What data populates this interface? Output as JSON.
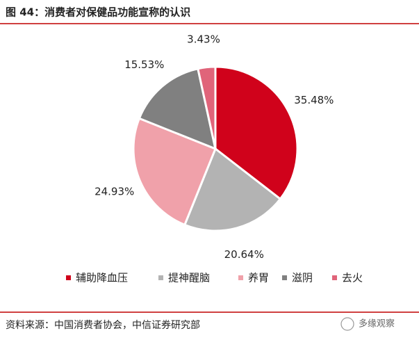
{
  "chart_data": {
    "type": "pie",
    "title": "图 44：消费者对保健品功能宣称的认识",
    "categories": [
      "辅助降血压",
      "提神醒脑",
      "养胃",
      "滋阴",
      "去火"
    ],
    "values": [
      35.48,
      20.64,
      24.93,
      15.53,
      3.43
    ],
    "value_labels": [
      "35.48%",
      "20.64%",
      "24.93%",
      "15.53%",
      "3.43%"
    ],
    "colors": [
      "#d0021b",
      "#b3b3b3",
      "#f0a1aa",
      "#808080",
      "#e0647a"
    ],
    "legend": "bottom",
    "source": "资料来源：中国消费者协会，中信证券研究部",
    "watermark": "多缘观察"
  }
}
